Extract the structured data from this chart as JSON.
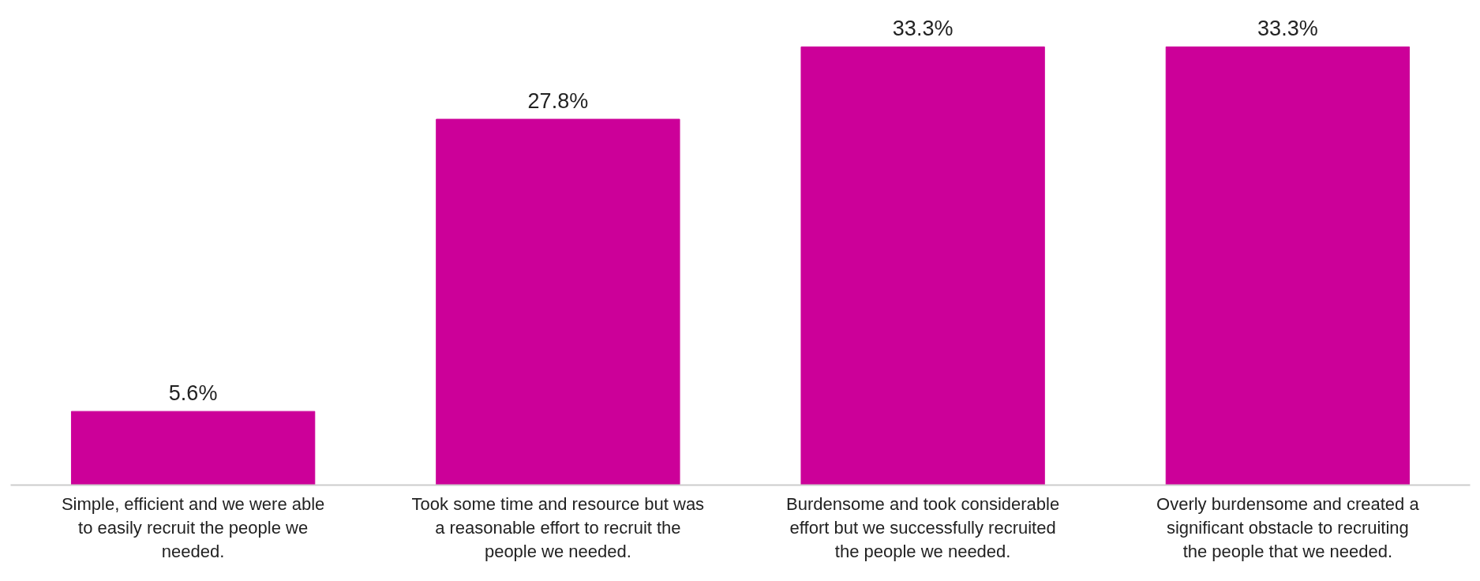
{
  "chart_data": {
    "type": "bar",
    "categories": [
      "Simple, efficient and we were able to easily recruit the people we needed.",
      "Took some time and resource but was a reasonable effort to recruit the people we needed.",
      "Burdensome and took considerable effort but we successfully recruited the people we needed.",
      "Overly burdensome and created a significant obstacle to recruiting the people that we needed."
    ],
    "values": [
      5.6,
      27.8,
      33.3,
      33.3
    ],
    "value_labels": [
      "5.6%",
      "27.8%",
      "33.3%",
      "33.3%"
    ],
    "color": "#cc0099"
  }
}
